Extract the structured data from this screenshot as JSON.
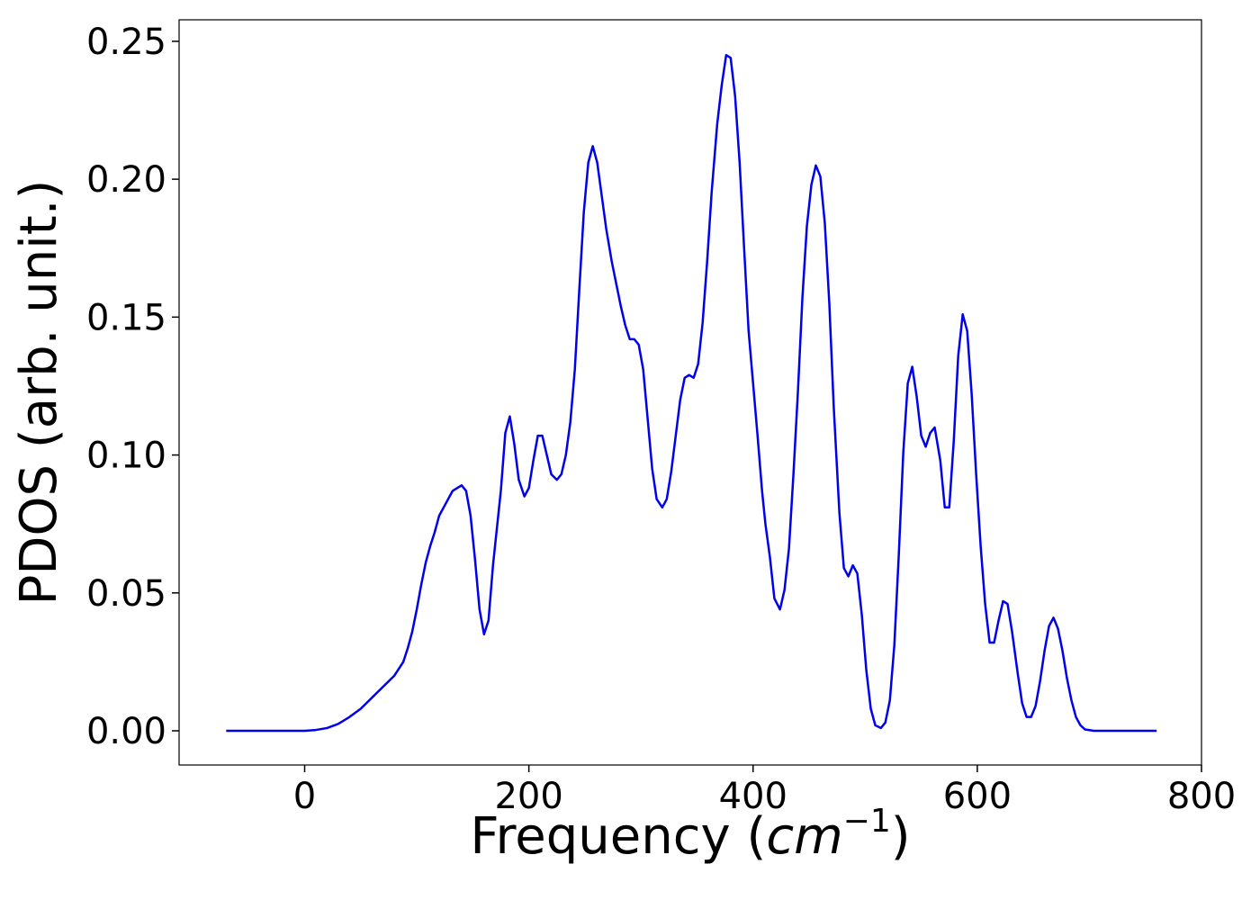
{
  "chart_data": {
    "type": "line",
    "xlabel": [
      "Frequency (",
      "cm",
      "−1",
      ")"
    ],
    "ylabel": "PDOS (arb. unit.)",
    "xlim": [
      -112,
      800
    ],
    "ylim": [
      -0.0124,
      0.2578
    ],
    "xticks": [
      0,
      200,
      400,
      600,
      800
    ],
    "yticks": [
      {
        "value": 0,
        "label": "0.00"
      },
      {
        "value": 0.05,
        "label": "0.05"
      },
      {
        "value": 0.1,
        "label": "0.10"
      },
      {
        "value": 0.15,
        "label": "0.15"
      },
      {
        "value": 0.2,
        "label": "0.20"
      },
      {
        "value": 0.25,
        "label": "0.25"
      }
    ],
    "grid": false,
    "x": [
      -70,
      0,
      10,
      20,
      30,
      40,
      50,
      60,
      70,
      80,
      88,
      92,
      96,
      100,
      104,
      108,
      112,
      116,
      120,
      124,
      128,
      132,
      136,
      140,
      144,
      148,
      152,
      156,
      160,
      164,
      168,
      175,
      179,
      183,
      187,
      191,
      196,
      200,
      204,
      208,
      212,
      216,
      220,
      225,
      229,
      233,
      237,
      241,
      245,
      249,
      253,
      257,
      261,
      265,
      269,
      274,
      278,
      282,
      286,
      290,
      294,
      298,
      302,
      306,
      310,
      314,
      319,
      323,
      327,
      331,
      335,
      339,
      343,
      347,
      351,
      355,
      359,
      363,
      368,
      372,
      376,
      380,
      384,
      388,
      392,
      396,
      400,
      404,
      408,
      411,
      415,
      419,
      424,
      428,
      432,
      436,
      440,
      444,
      448,
      452,
      456,
      460,
      464,
      468,
      472,
      477,
      481,
      485,
      489,
      493,
      497,
      501,
      505,
      509,
      514,
      518,
      522,
      526,
      530,
      534,
      538,
      542,
      546,
      550,
      554,
      558,
      562,
      567,
      571,
      575,
      579,
      583,
      587,
      591,
      595,
      599,
      603,
      607,
      611,
      615,
      619,
      623,
      627,
      631,
      636,
      640,
      644,
      648,
      652,
      656,
      660,
      664,
      668,
      672,
      676,
      680,
      684,
      688,
      692,
      696,
      704,
      760
    ],
    "series": [
      {
        "color": "#0000ee",
        "values": [
          0,
          0,
          0.0003,
          0.001,
          0.0025,
          0.005,
          0.008,
          0.012,
          0.016,
          0.02,
          0.025,
          0.03,
          0.036,
          0.044,
          0.053,
          0.061,
          0.067,
          0.072,
          0.078,
          0.081,
          0.084,
          0.087,
          0.088,
          0.089,
          0.087,
          0.078,
          0.062,
          0.044,
          0.035,
          0.04,
          0.06,
          0.087,
          0.108,
          0.114,
          0.104,
          0.091,
          0.085,
          0.088,
          0.098,
          0.107,
          0.107,
          0.1,
          0.093,
          0.091,
          0.093,
          0.1,
          0.112,
          0.131,
          0.16,
          0.188,
          0.206,
          0.212,
          0.206,
          0.194,
          0.182,
          0.17,
          0.162,
          0.154,
          0.147,
          0.142,
          0.142,
          0.14,
          0.131,
          0.113,
          0.095,
          0.084,
          0.081,
          0.084,
          0.094,
          0.107,
          0.12,
          0.128,
          0.129,
          0.128,
          0.133,
          0.148,
          0.17,
          0.195,
          0.22,
          0.234,
          0.245,
          0.244,
          0.23,
          0.206,
          0.175,
          0.145,
          0.126,
          0.107,
          0.087,
          0.075,
          0.063,
          0.048,
          0.044,
          0.051,
          0.066,
          0.093,
          0.123,
          0.157,
          0.183,
          0.198,
          0.205,
          0.201,
          0.184,
          0.155,
          0.117,
          0.079,
          0.059,
          0.056,
          0.06,
          0.057,
          0.042,
          0.022,
          0.008,
          0.002,
          0.001,
          0.003,
          0.011,
          0.031,
          0.064,
          0.101,
          0.126,
          0.132,
          0.121,
          0.107,
          0.103,
          0.108,
          0.11,
          0.098,
          0.081,
          0.081,
          0.105,
          0.136,
          0.151,
          0.145,
          0.122,
          0.093,
          0.067,
          0.046,
          0.032,
          0.032,
          0.04,
          0.047,
          0.046,
          0.036,
          0.021,
          0.01,
          0.005,
          0.005,
          0.009,
          0.018,
          0.029,
          0.038,
          0.041,
          0.037,
          0.029,
          0.019,
          0.011,
          0.005,
          0.002,
          0.0005,
          0,
          0
        ]
      }
    ]
  }
}
